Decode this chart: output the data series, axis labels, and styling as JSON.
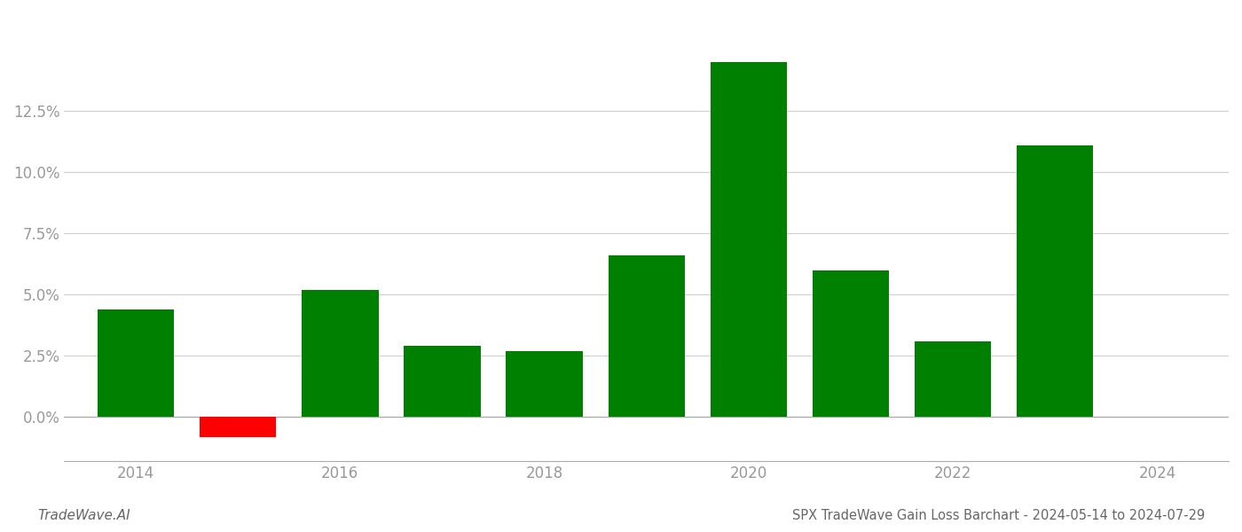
{
  "years": [
    2014,
    2015,
    2016,
    2017,
    2018,
    2019,
    2020,
    2021,
    2022,
    2023
  ],
  "values": [
    4.4,
    -0.8,
    5.2,
    2.9,
    2.7,
    6.6,
    14.5,
    6.0,
    3.1,
    11.1
  ],
  "colors": [
    "#008000",
    "#ff0000",
    "#008000",
    "#008000",
    "#008000",
    "#008000",
    "#008000",
    "#008000",
    "#008000",
    "#008000"
  ],
  "title": "SPX TradeWave Gain Loss Barchart - 2024-05-14 to 2024-07-29",
  "watermark": "TradeWave.AI",
  "xlim": [
    2013.3,
    2024.7
  ],
  "ylim": [
    -1.8,
    16.5
  ],
  "yticks": [
    0.0,
    2.5,
    5.0,
    7.5,
    10.0,
    12.5
  ],
  "xticks": [
    2014,
    2016,
    2018,
    2020,
    2022,
    2024
  ],
  "background_color": "#ffffff",
  "grid_color": "#d0d0d0",
  "tick_color": "#999999",
  "bar_width": 0.75,
  "title_fontsize": 10.5,
  "watermark_fontsize": 11,
  "axis_label_fontsize": 12
}
